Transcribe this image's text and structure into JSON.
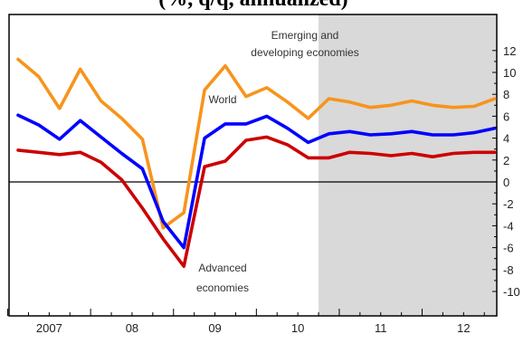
{
  "chart_data": {
    "type": "line",
    "title_fragment": "(%, q/q, annualized)",
    "x": [
      "2007Q1",
      "2007Q2",
      "2007Q3",
      "2007Q4",
      "2008Q1",
      "2008Q2",
      "2008Q3",
      "2008Q4",
      "2009Q1",
      "2009Q2",
      "2009Q3",
      "2009Q4",
      "2010Q1",
      "2010Q2",
      "2010Q3",
      "2010Q4",
      "2011Q1",
      "2011Q2",
      "2011Q3",
      "2011Q4",
      "2012Q1",
      "2012Q2",
      "2012Q3",
      "2012Q4"
    ],
    "x_tick_labels": [
      "2007",
      "08",
      "09",
      "10",
      "11",
      "12"
    ],
    "series": [
      {
        "name": "Emerging and developing economies",
        "color": "#f7941d",
        "values": [
          11.2,
          9.6,
          6.7,
          10.3,
          7.4,
          5.8,
          3.9,
          -4.2,
          -2.8,
          8.4,
          10.6,
          7.8,
          8.6,
          7.3,
          5.8,
          7.6,
          7.3,
          6.8,
          7.0,
          7.4,
          7.0,
          6.8,
          6.9,
          7.6
        ]
      },
      {
        "name": "World",
        "color": "#0000ff",
        "values": [
          6.1,
          5.2,
          3.9,
          5.6,
          4.1,
          2.6,
          1.2,
          -3.6,
          -6.0,
          4.0,
          5.3,
          5.3,
          6.0,
          4.9,
          3.6,
          4.4,
          4.6,
          4.3,
          4.4,
          4.6,
          4.3,
          4.3,
          4.5,
          4.9
        ]
      },
      {
        "name": "Advanced economies",
        "color": "#cc0000",
        "values": [
          2.9,
          2.7,
          2.5,
          2.7,
          1.8,
          0.2,
          -2.4,
          -5.2,
          -7.7,
          1.4,
          1.9,
          3.8,
          4.1,
          3.4,
          2.2,
          2.2,
          2.7,
          2.6,
          2.4,
          2.6,
          2.3,
          2.6,
          2.7,
          2.7
        ]
      }
    ],
    "labels": {
      "emerging": [
        "Emerging and",
        "developing economies"
      ],
      "world": "World",
      "advanced": [
        "Advanced",
        "economies"
      ]
    },
    "y_ticks": [
      "12",
      "10",
      "8",
      "6",
      "4",
      "2",
      "0",
      "-2",
      "-4",
      "-6",
      "-8",
      "-10"
    ],
    "ylim": [
      -10,
      12
    ],
    "grid": false,
    "shaded_region": {
      "from": "2010Q4",
      "to": "2012Q4",
      "color": "#d9d9d9"
    },
    "colors": {
      "shade": "#d9d9d9",
      "frame": "#000000",
      "zero_line": "#000000"
    }
  }
}
